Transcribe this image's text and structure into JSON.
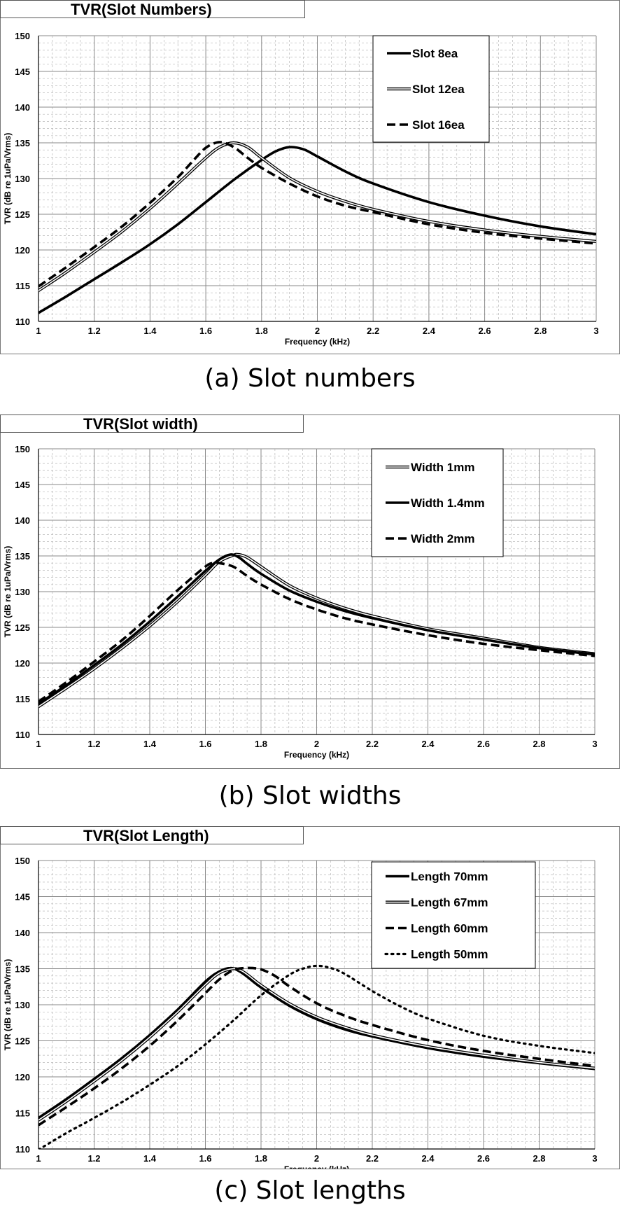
{
  "panels": [
    {
      "caption": "(a)  Slot  numbers"
    },
    {
      "caption": "(b)  Slot  widths"
    },
    {
      "caption": "(c)  Slot  lengths"
    }
  ],
  "chart_data": [
    {
      "type": "line",
      "title": "TVR(Slot Numbers)",
      "xlabel": "Frequency (kHz)",
      "ylabel": "TVR (dB re 1uPa/Vrms)",
      "xlim": [
        1,
        3
      ],
      "ylim": [
        110,
        150
      ],
      "xticks": [
        "1",
        "1.2",
        "1.4",
        "1.6",
        "1.8",
        "2",
        "2.2",
        "2.4",
        "2.6",
        "2.8",
        "3"
      ],
      "yticks": [
        "110",
        "115",
        "120",
        "125",
        "130",
        "135",
        "140",
        "145",
        "150"
      ],
      "legend_position": "top-right",
      "series": [
        {
          "name": "Slot 8ea",
          "style": "solid",
          "x": [
            1.0,
            1.1,
            1.2,
            1.3,
            1.4,
            1.5,
            1.6,
            1.7,
            1.8,
            1.85,
            1.9,
            1.95,
            2.0,
            2.1,
            2.2,
            2.4,
            2.6,
            2.8,
            3.0
          ],
          "y": [
            111.2,
            113.5,
            115.9,
            118.3,
            120.8,
            123.6,
            126.7,
            129.8,
            132.6,
            133.8,
            134.4,
            134.1,
            133.1,
            131.0,
            129.3,
            126.7,
            124.8,
            123.3,
            122.2
          ]
        },
        {
          "name": "Slot 12ea",
          "style": "double",
          "x": [
            1.0,
            1.1,
            1.2,
            1.3,
            1.4,
            1.5,
            1.6,
            1.65,
            1.7,
            1.75,
            1.8,
            1.9,
            2.0,
            2.1,
            2.2,
            2.4,
            2.6,
            2.8,
            3.0
          ],
          "y": [
            114.3,
            116.9,
            119.7,
            122.6,
            125.8,
            129.3,
            132.9,
            134.4,
            135.0,
            134.4,
            132.9,
            130.1,
            128.2,
            126.8,
            125.7,
            124.0,
            122.8,
            121.9,
            121.2
          ]
        },
        {
          "name": "Slot 16ea",
          "style": "dashed",
          "x": [
            1.0,
            1.1,
            1.2,
            1.3,
            1.4,
            1.5,
            1.55,
            1.6,
            1.65,
            1.7,
            1.75,
            1.8,
            1.9,
            2.0,
            2.1,
            2.2,
            2.4,
            2.6,
            2.8,
            3.0
          ],
          "y": [
            114.9,
            117.6,
            120.4,
            123.3,
            126.6,
            130.2,
            132.3,
            134.3,
            135.1,
            134.4,
            132.9,
            131.5,
            129.3,
            127.5,
            126.2,
            125.3,
            123.6,
            122.4,
            121.6,
            120.9
          ]
        }
      ]
    },
    {
      "type": "line",
      "title": "TVR(Slot width)",
      "xlabel": "Frequency (kHz)",
      "ylabel": "TVR (dB re 1uPa/Vrms)",
      "xlim": [
        1,
        3
      ],
      "ylim": [
        110,
        150
      ],
      "xticks": [
        "1",
        "1.2",
        "1.4",
        "1.6",
        "1.8",
        "2",
        "2.2",
        "2.4",
        "2.6",
        "2.8",
        "3"
      ],
      "yticks": [
        "110",
        "115",
        "120",
        "125",
        "130",
        "135",
        "140",
        "145",
        "150"
      ],
      "legend_position": "top-right",
      "series": [
        {
          "name": "Width 1mm",
          "style": "double",
          "x": [
            1.0,
            1.1,
            1.2,
            1.3,
            1.4,
            1.5,
            1.6,
            1.65,
            1.7,
            1.72,
            1.75,
            1.8,
            1.9,
            2.0,
            2.1,
            2.2,
            2.4,
            2.6,
            2.8,
            3.0
          ],
          "y": [
            113.9,
            116.5,
            119.2,
            122.1,
            125.2,
            128.6,
            132.3,
            134.2,
            135.1,
            135.2,
            134.8,
            133.5,
            130.9,
            129.1,
            127.7,
            126.6,
            124.8,
            123.5,
            122.2,
            121.3
          ]
        },
        {
          "name": "Width 1.4mm",
          "style": "solid",
          "x": [
            1.0,
            1.1,
            1.2,
            1.3,
            1.4,
            1.5,
            1.6,
            1.65,
            1.69,
            1.72,
            1.75,
            1.8,
            1.9,
            2.0,
            2.1,
            2.2,
            2.4,
            2.6,
            2.8,
            3.0
          ],
          "y": [
            114.3,
            116.9,
            119.7,
            122.6,
            125.8,
            129.3,
            132.9,
            134.5,
            135.2,
            134.8,
            133.9,
            132.5,
            130.2,
            128.6,
            127.3,
            126.3,
            124.6,
            123.3,
            122.1,
            121.2
          ]
        },
        {
          "name": "Width 2mm",
          "style": "dashed",
          "x": [
            1.0,
            1.1,
            1.2,
            1.3,
            1.4,
            1.5,
            1.6,
            1.63,
            1.65,
            1.7,
            1.75,
            1.8,
            1.9,
            2.0,
            2.1,
            2.2,
            2.4,
            2.6,
            2.8,
            3.0
          ],
          "y": [
            114.6,
            117.3,
            120.2,
            123.2,
            126.6,
            130.2,
            133.5,
            134.0,
            134.0,
            133.5,
            132.2,
            131.0,
            129.0,
            127.5,
            126.3,
            125.4,
            123.9,
            122.7,
            121.8,
            121.0
          ]
        }
      ]
    },
    {
      "type": "line",
      "title": "TVR(Slot Length)",
      "xlabel": "Frequency (kHz)",
      "ylabel": "TVR (dB re 1uPa/Vrms)",
      "xlim": [
        1,
        3
      ],
      "ylim": [
        110,
        150
      ],
      "xticks": [
        "1",
        "1.2",
        "1.4",
        "1.6",
        "1.8",
        "2",
        "2.2",
        "2.4",
        "2.6",
        "2.8",
        "3"
      ],
      "yticks": [
        "110",
        "115",
        "120",
        "125",
        "130",
        "135",
        "140",
        "145",
        "150"
      ],
      "legend_position": "top-right",
      "series": [
        {
          "name": "Length 70mm",
          "style": "solid",
          "x": [
            1.0,
            1.1,
            1.2,
            1.3,
            1.4,
            1.5,
            1.6,
            1.65,
            1.69,
            1.72,
            1.75,
            1.8,
            1.9,
            2.0,
            2.1,
            2.2,
            2.4,
            2.6,
            2.8,
            3.0
          ],
          "y": [
            114.3,
            116.9,
            119.7,
            122.6,
            125.8,
            129.3,
            133.2,
            134.6,
            135.1,
            134.7,
            133.9,
            132.4,
            129.9,
            128.0,
            126.6,
            125.6,
            124.0,
            122.8,
            121.9,
            121.1
          ]
        },
        {
          "name": "Length 67mm",
          "style": "double",
          "x": [
            1.0,
            1.1,
            1.2,
            1.3,
            1.4,
            1.5,
            1.6,
            1.65,
            1.7,
            1.73,
            1.76,
            1.8,
            1.9,
            2.0,
            2.1,
            2.2,
            2.4,
            2.6,
            2.8,
            3.0
          ],
          "y": [
            114.0,
            116.6,
            119.4,
            122.3,
            125.5,
            129.0,
            132.8,
            134.4,
            135.0,
            134.7,
            133.9,
            132.7,
            130.2,
            128.3,
            126.9,
            125.8,
            124.2,
            123.0,
            122.0,
            121.2
          ]
        },
        {
          "name": "Length 60mm",
          "style": "dashed",
          "x": [
            1.0,
            1.1,
            1.2,
            1.3,
            1.4,
            1.5,
            1.6,
            1.65,
            1.7,
            1.75,
            1.8,
            1.85,
            1.9,
            2.0,
            2.1,
            2.2,
            2.4,
            2.6,
            2.8,
            3.0
          ],
          "y": [
            113.3,
            115.8,
            118.4,
            121.2,
            124.3,
            127.8,
            131.6,
            133.5,
            134.8,
            135.1,
            134.9,
            134.0,
            132.6,
            130.2,
            128.5,
            127.2,
            125.1,
            123.6,
            122.5,
            121.5
          ]
        },
        {
          "name": "Length 50mm",
          "style": "dotted",
          "x": [
            1.0,
            1.1,
            1.2,
            1.3,
            1.4,
            1.5,
            1.6,
            1.7,
            1.8,
            1.9,
            1.95,
            2.0,
            2.05,
            2.1,
            2.2,
            2.3,
            2.4,
            2.6,
            2.8,
            3.0
          ],
          "y": [
            109.9,
            112.2,
            114.3,
            116.5,
            118.9,
            121.5,
            124.5,
            127.8,
            131.3,
            134.1,
            135.0,
            135.4,
            135.1,
            134.3,
            131.9,
            129.8,
            128.1,
            125.7,
            124.3,
            123.3
          ]
        }
      ]
    }
  ]
}
